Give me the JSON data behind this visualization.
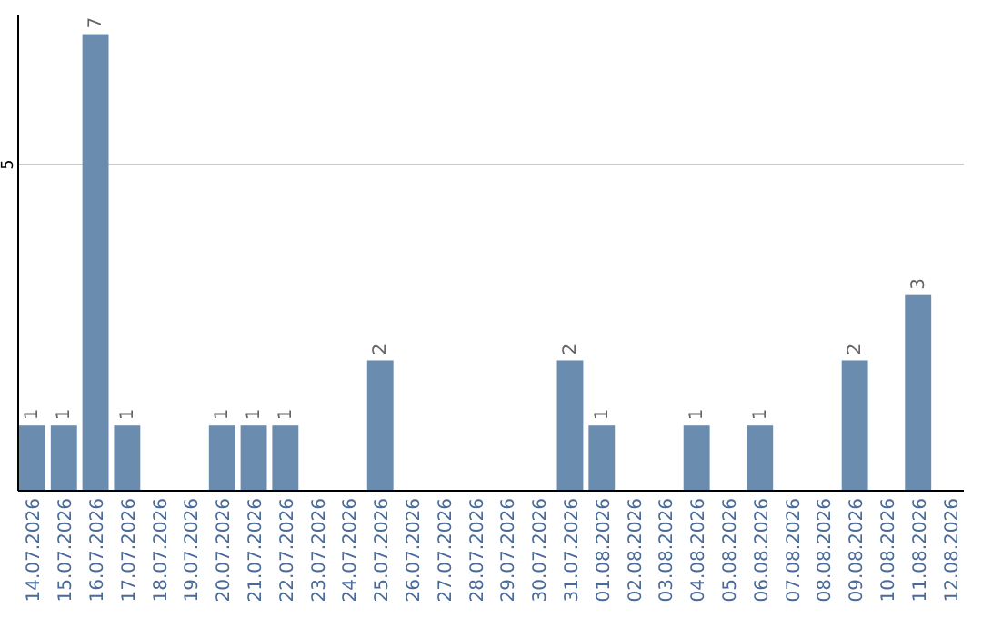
{
  "chart_data": {
    "type": "bar",
    "categories": [
      "14.07.2026",
      "15.07.2026",
      "16.07.2026",
      "17.07.2026",
      "18.07.2026",
      "19.07.2026",
      "20.07.2026",
      "21.07.2026",
      "22.07.2026",
      "23.07.2026",
      "24.07.2026",
      "25.07.2026",
      "26.07.2026",
      "27.07.2026",
      "28.07.2026",
      "29.07.2026",
      "30.07.2026",
      "31.07.2026",
      "01.08.2026",
      "02.08.2026",
      "03.08.2026",
      "04.08.2026",
      "05.08.2026",
      "06.08.2026",
      "07.08.2026",
      "08.08.2026",
      "09.08.2026",
      "10.08.2026",
      "11.08.2026",
      "12.08.2026"
    ],
    "values": [
      1,
      1,
      7,
      1,
      null,
      null,
      1,
      1,
      1,
      null,
      null,
      2,
      null,
      null,
      null,
      null,
      null,
      2,
      1,
      null,
      null,
      1,
      null,
      1,
      null,
      null,
      2,
      null,
      3,
      null
    ],
    "color": "#6a8caf",
    "ylim": [
      0,
      7.3
    ],
    "yticks": [
      5
    ],
    "grid": "y",
    "data_labels": true
  }
}
